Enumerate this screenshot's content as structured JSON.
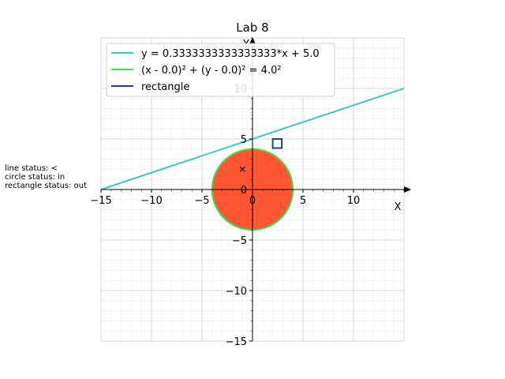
{
  "status": {
    "line": "line status: <",
    "circle": "circle status: in",
    "rectangle": "rectangle status: out"
  },
  "chart_data": {
    "type": "line",
    "title": "Lab 8",
    "xlabel": "X",
    "ylabel": "Y",
    "xlim": [
      -15,
      15
    ],
    "ylim": [
      -15,
      15
    ],
    "xticks": [
      -15,
      -10,
      -5,
      0,
      5,
      10
    ],
    "yticks": [
      -15,
      -10,
      -5,
      0,
      5,
      10
    ],
    "grid": true,
    "minor_grid": true,
    "legend_position": "top-left",
    "series": [
      {
        "name": "y = 0.3333333333333333*x + 5.0",
        "kind": "line",
        "slope": 0.3333333333333333,
        "intercept": 5.0,
        "x": [
          -15,
          15
        ],
        "y": [
          0,
          10
        ],
        "color": "#33cccc"
      },
      {
        "name": "(x - 0.0)² + (y - 0.0)² = 4.0²",
        "kind": "circle",
        "center": [
          0.0,
          0.0
        ],
        "radius": 4.0,
        "color": "#44dd44",
        "fill": "#ff5533"
      },
      {
        "name": "rectangle",
        "kind": "rectangle",
        "x_range": [
          2.0,
          2.9
        ],
        "y_range": [
          4.1,
          5.0
        ],
        "color": "#1144aa"
      }
    ],
    "point": {
      "x": -1.0,
      "y": 2.0,
      "marker": "x"
    }
  }
}
